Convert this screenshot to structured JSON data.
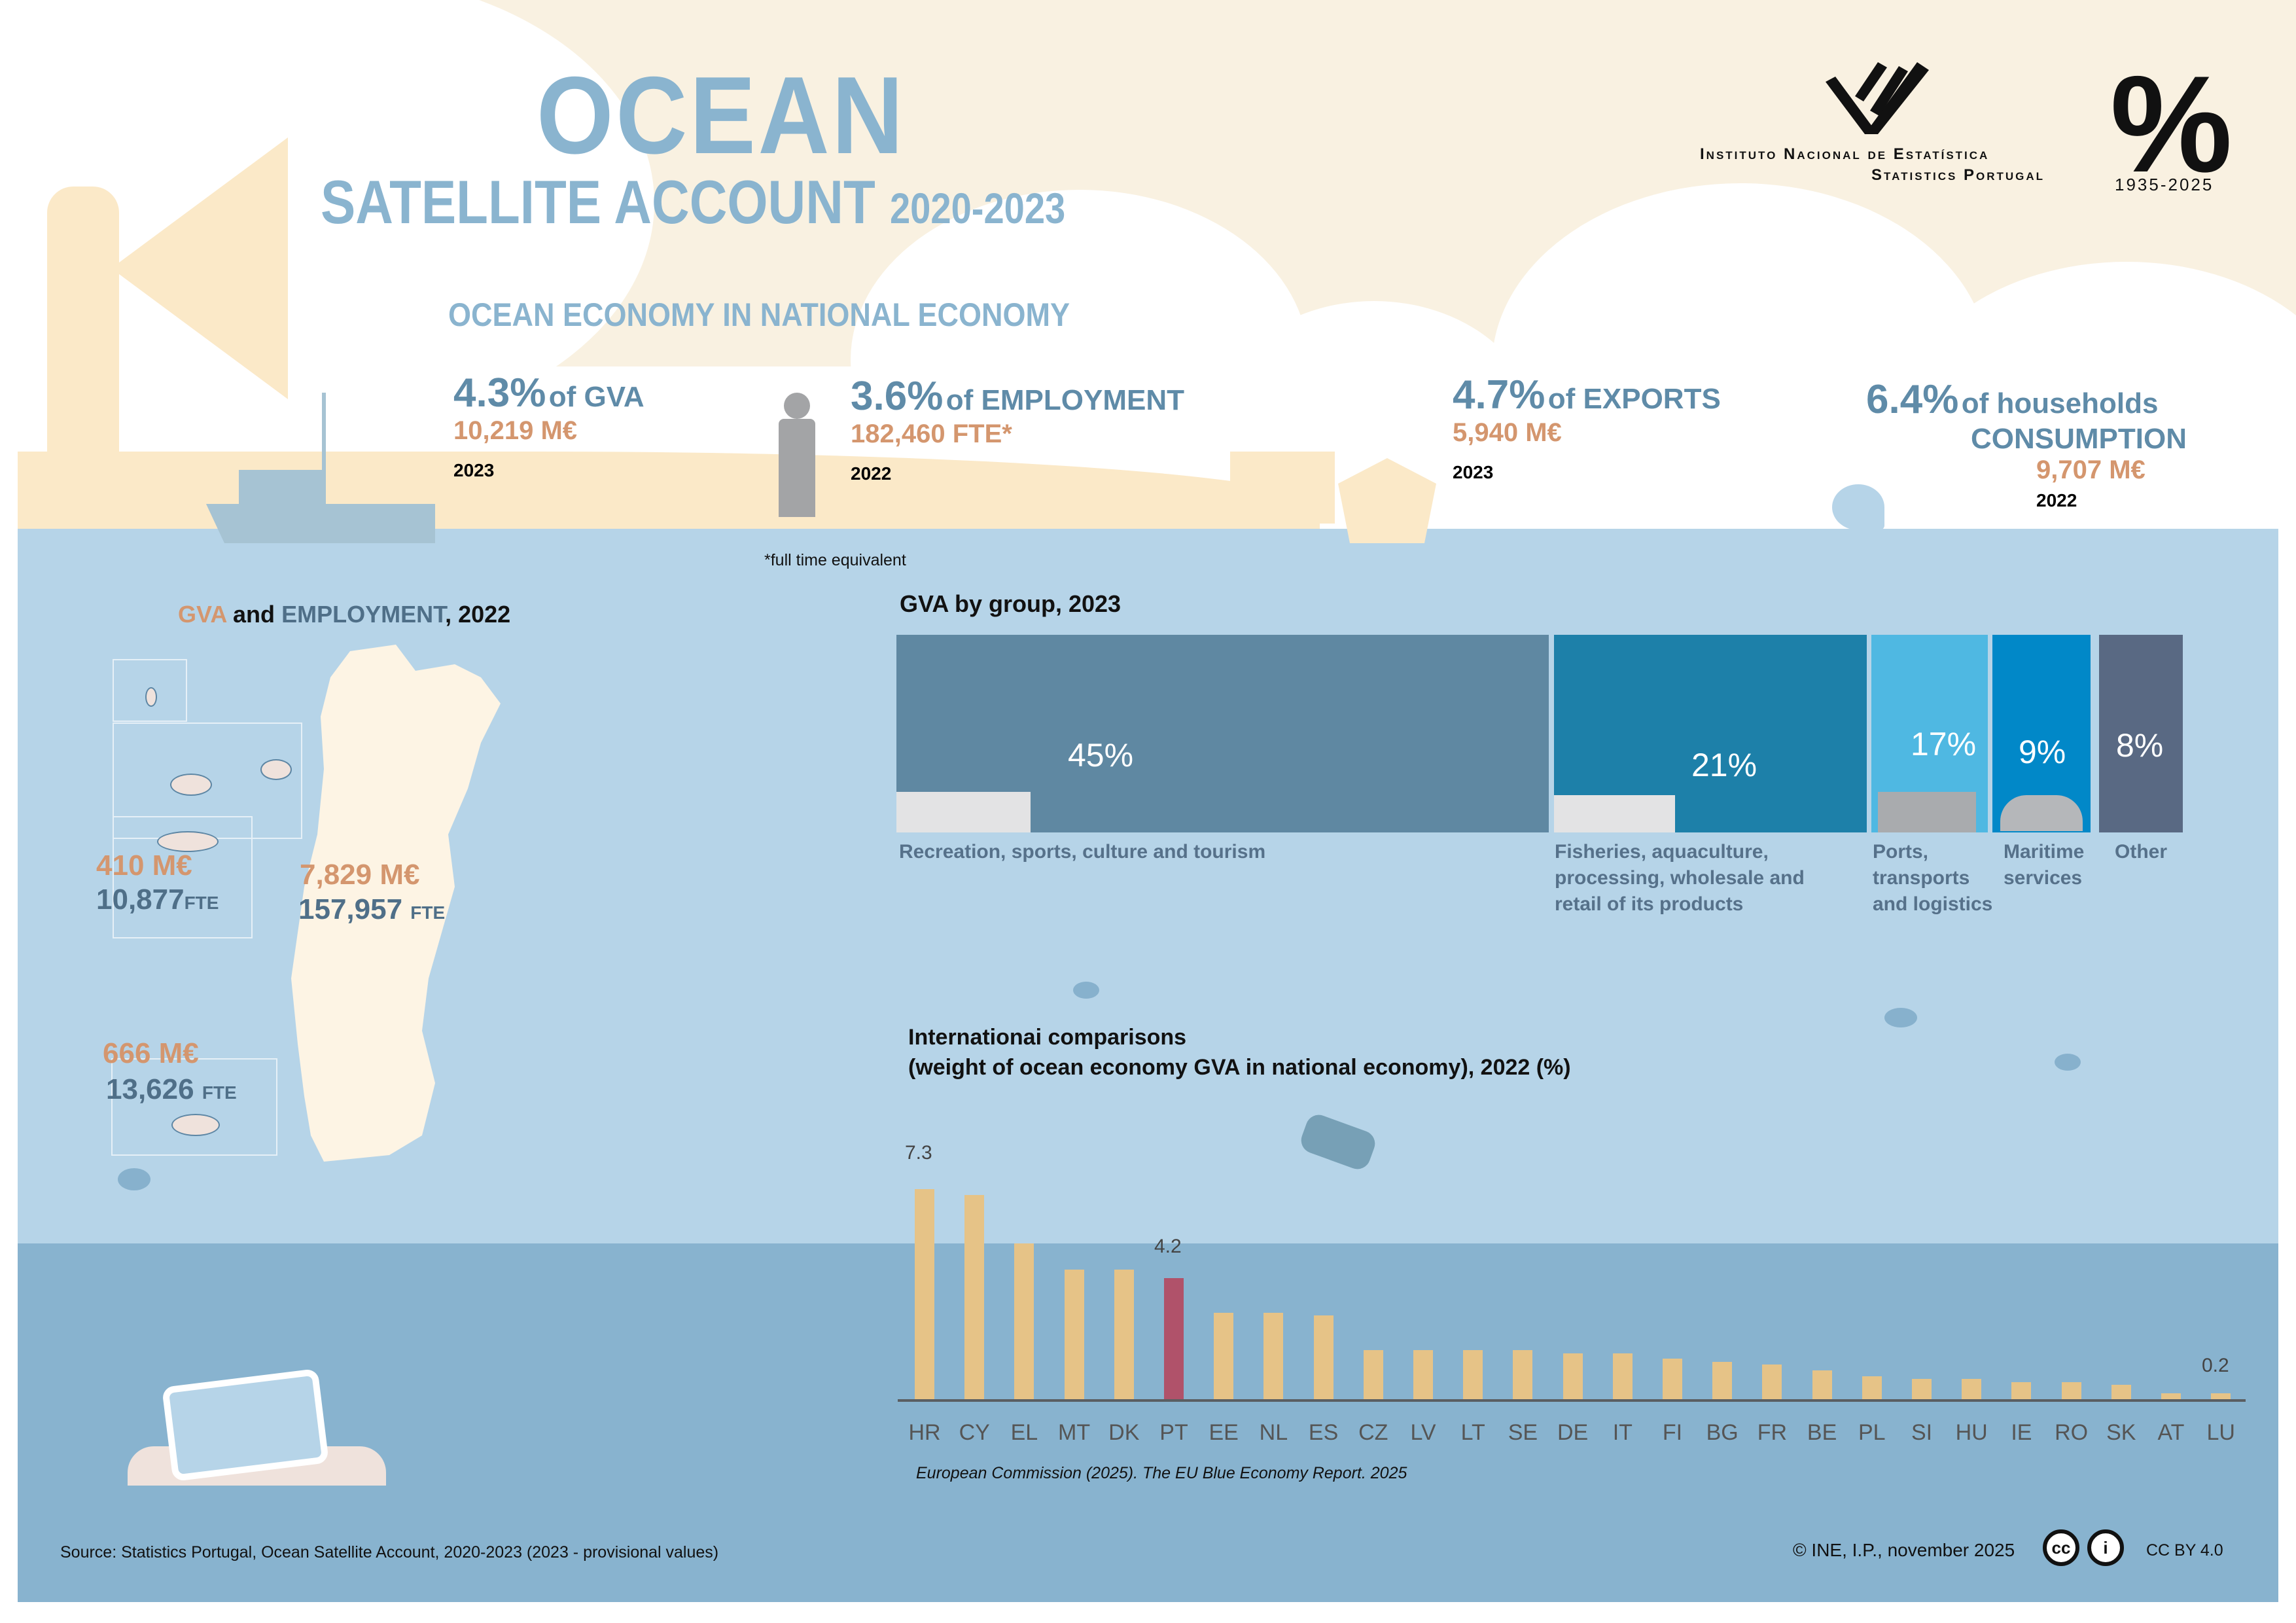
{
  "header": {
    "title_main": "OCEAN",
    "title_sub": "SATELLITE ACCOUNT",
    "title_years": "2020-2023",
    "org_name_line1": "Instituto Nacional de Estatística",
    "org_name_line2": "Statistics Portugal",
    "anniversary_logo": "%",
    "anniversary_years": "1935-2025"
  },
  "national_economy": {
    "heading": "OCEAN ECONOMY IN NATIONAL ECONOMY",
    "kpis": [
      {
        "pct": "4.3%",
        "label": "of GVA",
        "value": "10,219 M€",
        "year": "2023",
        "icon": "fishing-boat-icon"
      },
      {
        "pct": "3.6%",
        "label": "of EMPLOYMENT",
        "value": "182,460 FTE*",
        "year": "2022",
        "icon": "fisherman-icon"
      },
      {
        "pct": "4.7%",
        "label": "of EXPORTS",
        "value": "5,940 M€",
        "year": "2023",
        "icon": "cargo-ship-crane-icon"
      },
      {
        "pct": "6.4%",
        "label": "of households",
        "label2": "CONSUMPTION",
        "value": "9,707 M€",
        "year": "2022",
        "icon": "dolphin-icon"
      }
    ],
    "footnote": "*full time equivalent"
  },
  "regional": {
    "title_gva": "GVA",
    "title_and": "and",
    "title_emp": "EMPLOYMENT",
    "title_year": ", 2022",
    "regions": [
      {
        "name": "Azores",
        "gva": "410 M€",
        "employment": "10,877",
        "unit": "FTE"
      },
      {
        "name": "Mainland",
        "gva": "7,829 M€",
        "employment": "157,957",
        "unit": "FTE"
      },
      {
        "name": "Madeira",
        "gva": "666 M€",
        "employment": "13,626",
        "unit": "FTE"
      }
    ]
  },
  "gva_by_group": {
    "title": "GVA by group, 2023",
    "groups": [
      {
        "label": "Recreation, sports, culture and tourism",
        "pct": "45%",
        "color": "#5f88a2",
        "icon": "beach-umbrella-icon"
      },
      {
        "label": "Fisheries, aquaculture, processing, wholesale and retail of its products",
        "pct": "21%",
        "color": "#1d80a9",
        "icon": "fish-icon"
      },
      {
        "label": "Ports, transports and logistics",
        "pct": "17%",
        "color": "#4fb8e2",
        "icon": "ship-icon"
      },
      {
        "label": "Maritime services",
        "pct": "9%",
        "color": "#0188c8",
        "icon": "captain-hat-icon"
      },
      {
        "label": "Other",
        "pct": "8%",
        "color": "#596983",
        "icon": null
      }
    ]
  },
  "international": {
    "title_line1": "Internationai comparisons",
    "title_line2": "(weight of ocean economy GVA in national economy), 2022 (%)",
    "source": "European Commission (2025). The EU Blue Economy Report. 2025",
    "label_max": "7.3",
    "label_pt": "4.2",
    "label_min": "0.2"
  },
  "chart_data": {
    "type": "bar",
    "title": "Internationai comparisons (weight of ocean economy GVA in national economy), 2022 (%)",
    "xlabel": "",
    "ylabel": "%",
    "categories": [
      "HR",
      "CY",
      "EL",
      "MT",
      "DK",
      "PT",
      "EE",
      "NL",
      "ES",
      "CZ",
      "LV",
      "LT",
      "SE",
      "DE",
      "IT",
      "FI",
      "BG",
      "FR",
      "BE",
      "PL",
      "SI",
      "HU",
      "IE",
      "RO",
      "SK",
      "AT",
      "LU"
    ],
    "values": [
      7.3,
      7.1,
      5.4,
      4.5,
      4.5,
      4.2,
      3.0,
      3.0,
      2.9,
      1.7,
      1.7,
      1.7,
      1.7,
      1.6,
      1.6,
      1.4,
      1.3,
      1.2,
      1.0,
      0.8,
      0.7,
      0.7,
      0.6,
      0.6,
      0.5,
      0.2,
      0.2
    ],
    "highlight": "PT",
    "colors": {
      "default": "#e6c387",
      "highlight": "#b0526a"
    },
    "data_labels": {
      "HR": "7.3",
      "PT": "4.2",
      "LU": "0.2"
    },
    "ylim": [
      0,
      8
    ],
    "grid": false,
    "legend": null
  },
  "footer": {
    "source": "Source: Statistics Portugal, Ocean Satellite Account, 2020-2023 (2023 - provisional values)",
    "copyright": "© INE, I.P., november 2025",
    "license": "CC BY 4.0",
    "cc_glyph": "cc",
    "by_glyph": "i"
  },
  "colors": {
    "title_blue": "#8ab4cf",
    "kpi_blue": "#5f8ba8",
    "value_orange": "#d4966e",
    "sea_light": "#b6d4e8",
    "sea_deep": "#88b3cf",
    "sand": "#fbe9c8",
    "sky": "#f9f1e1"
  }
}
